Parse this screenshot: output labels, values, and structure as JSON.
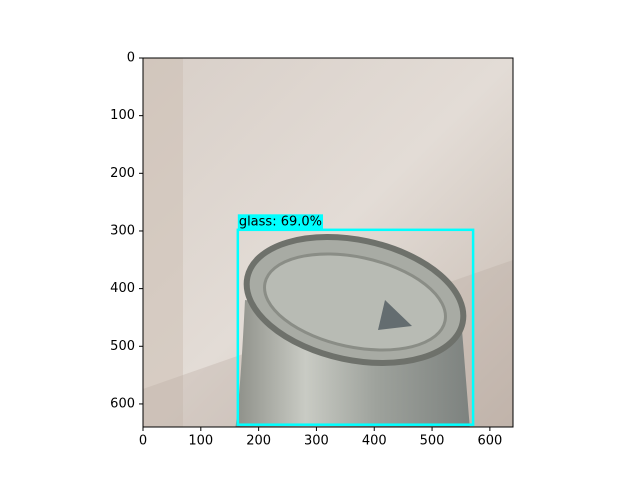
{
  "chart_data": {
    "type": "image",
    "xlim": [
      0,
      640
    ],
    "ylim": [
      640,
      0
    ],
    "xticks": [
      0,
      100,
      200,
      300,
      400,
      500,
      600
    ],
    "yticks": [
      0,
      100,
      200,
      300,
      400,
      500,
      600
    ],
    "boxes": [
      {
        "label": "glass: 69.0%",
        "x": [
          164,
          571
        ],
        "y": [
          298,
          636
        ],
        "color": "#00ffff"
      }
    ]
  }
}
